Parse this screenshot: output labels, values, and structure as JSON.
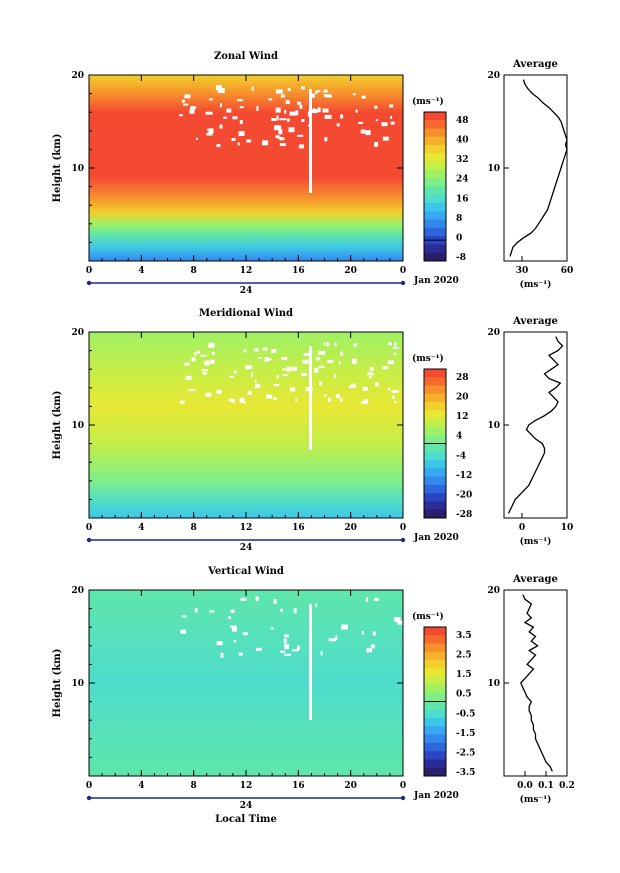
{
  "chart_data": [
    {
      "type": "heatmap",
      "title": "Zonal Wind",
      "ylabel": "Height (km)",
      "units": "(ms⁻¹)",
      "x_ticks": [
        "0",
        "4",
        "8",
        "12",
        "16",
        "20",
        "0"
      ],
      "x_date_label": "24",
      "x_month_label": "Jan 2020",
      "y_ticks": [
        "20",
        "10"
      ],
      "ylim": [
        0,
        20
      ],
      "xlim": [
        0,
        24
      ],
      "colorbar": {
        "ticks": [
          "48",
          "40",
          "32",
          "24",
          "16",
          "8",
          "0",
          "-8"
        ],
        "colors": [
          "#f44a32",
          "#f66a2e",
          "#f7902c",
          "#f5b02c",
          "#f2cf2c",
          "#e8e834",
          "#c4ee48",
          "#a0f066",
          "#7eee88",
          "#5fe6aa",
          "#4edccc",
          "#3ec6ea",
          "#38a8f2",
          "#3388ec",
          "#2e66dc",
          "#2b46c2",
          "#2c2c96",
          "#281e6a"
        ]
      },
      "profile_title": "Average",
      "profile_x_ticks": [
        "30",
        "60"
      ],
      "profile_xlim": [
        18,
        60
      ],
      "profile_xlabel": "(ms⁻¹)",
      "profile": {
        "height": [
          0.5,
          1,
          1.5,
          2,
          2.5,
          3,
          3.5,
          4,
          4.5,
          5,
          5.5,
          6,
          6.5,
          7,
          7.5,
          8,
          8.5,
          9,
          9.5,
          10,
          10.5,
          11,
          11.5,
          12,
          12.5,
          13,
          13.5,
          14,
          14.5,
          15,
          15.5,
          16,
          16.5,
          17,
          17.5,
          18,
          18.5,
          19,
          19.5
        ],
        "value": [
          22,
          23,
          24,
          27,
          31,
          36,
          39,
          41,
          43,
          45,
          47,
          48,
          49,
          50,
          51,
          52,
          53,
          54,
          55,
          56,
          57,
          58,
          59,
          60,
          59,
          60,
          59,
          58,
          57,
          56,
          54,
          51,
          48,
          44,
          41,
          37,
          34,
          32,
          31
        ]
      }
    },
    {
      "type": "heatmap",
      "title": "Meridional Wind",
      "ylabel": "Height (km)",
      "units": "(ms⁻¹)",
      "x_ticks": [
        "0",
        "4",
        "8",
        "12",
        "16",
        "20",
        "0"
      ],
      "x_date_label": "24",
      "x_month_label": "Jan 2020",
      "y_ticks": [
        "20",
        "10"
      ],
      "ylim": [
        0,
        20
      ],
      "xlim": [
        0,
        24
      ],
      "colorbar": {
        "ticks": [
          "28",
          "20",
          "12",
          "4",
          "-4",
          "-12",
          "-20",
          "-28"
        ],
        "colors": [
          "#f44a32",
          "#f66a2e",
          "#f7902c",
          "#f5b02c",
          "#f2cf2c",
          "#e8e834",
          "#c4ee48",
          "#a0f066",
          "#7eee88",
          "#5fe6aa",
          "#4edccc",
          "#3ec6ea",
          "#38a8f2",
          "#3388ec",
          "#2e66dc",
          "#2b46c2",
          "#2c2c96",
          "#281e6a"
        ]
      },
      "profile_title": "Average",
      "profile_x_ticks": [
        "0",
        "10"
      ],
      "profile_xlim": [
        -4,
        10
      ],
      "profile_xlabel": "(ms⁻¹)",
      "profile": {
        "height": [
          0.5,
          1,
          1.5,
          2,
          2.5,
          3,
          3.5,
          4,
          4.5,
          5,
          5.5,
          6,
          6.5,
          7,
          7.5,
          8,
          8.5,
          9,
          9.5,
          10,
          10.5,
          11,
          11.5,
          12,
          12.5,
          13,
          13.5,
          14,
          14.5,
          15,
          15.5,
          16,
          16.5,
          17,
          17.5,
          18,
          18.5,
          19,
          19.5
        ],
        "value": [
          -3,
          -2.5,
          -2,
          -1.5,
          -0.5,
          0.5,
          1.5,
          2,
          2.5,
          3,
          3.5,
          4,
          4.5,
          5,
          5,
          4.5,
          3,
          2,
          1,
          1.5,
          3,
          5,
          6.5,
          7.5,
          8,
          7,
          6,
          7.5,
          8.5,
          6,
          5,
          6.5,
          8,
          7,
          6,
          8,
          9,
          8,
          7.5
        ]
      }
    },
    {
      "type": "heatmap",
      "title": "Vertical Wind",
      "ylabel": "Height (km)",
      "xlabel": "Local Time",
      "units": "(ms⁻¹)",
      "x_ticks": [
        "0",
        "4",
        "8",
        "12",
        "16",
        "20",
        "0"
      ],
      "x_date_label": "24",
      "x_month_label": "Jan 2020",
      "y_ticks": [
        "20",
        "10"
      ],
      "ylim": [
        0,
        20
      ],
      "xlim": [
        0,
        24
      ],
      "colorbar": {
        "ticks": [
          "3.5",
          "2.5",
          "1.5",
          "0.5",
          "-0.5",
          "-1.5",
          "-2.5",
          "-3.5"
        ],
        "colors": [
          "#f44a32",
          "#f66a2e",
          "#f7902c",
          "#f5b02c",
          "#f2cf2c",
          "#e8e834",
          "#c4ee48",
          "#a0f066",
          "#7eee88",
          "#5fe6aa",
          "#4edccc",
          "#3ec6ea",
          "#38a8f2",
          "#3388ec",
          "#2e66dc",
          "#2b46c2",
          "#2c2c96",
          "#281e6a"
        ]
      },
      "profile_title": "Average",
      "profile_x_ticks": [
        "0.0",
        "0.1",
        "0.2"
      ],
      "profile_xlim": [
        -0.1,
        0.2
      ],
      "profile_xlabel": "(ms⁻¹)",
      "profile": {
        "height": [
          0.5,
          1,
          1.5,
          2,
          2.5,
          3,
          3.5,
          4,
          4.5,
          5,
          5.5,
          6,
          6.5,
          7,
          7.5,
          8,
          8.5,
          9,
          9.5,
          10,
          10.5,
          11,
          11.5,
          12,
          12.5,
          13,
          13.5,
          14,
          14.5,
          15,
          15.5,
          16,
          16.5,
          17,
          17.5,
          18,
          18.5,
          19,
          19.5
        ],
        "value": [
          0.13,
          0.12,
          0.1,
          0.09,
          0.08,
          0.07,
          0.06,
          0.05,
          0.05,
          0.04,
          0.04,
          0.03,
          0.03,
          0.02,
          0.02,
          0.03,
          0.01,
          0.0,
          -0.01,
          -0.02,
          0.0,
          0.02,
          0.04,
          0.01,
          0.03,
          0.05,
          0.02,
          0.06,
          0.03,
          0.05,
          0.02,
          0.04,
          0.0,
          0.03,
          0.01,
          0.02,
          0.03,
          0.0,
          -0.01
        ]
      }
    }
  ]
}
